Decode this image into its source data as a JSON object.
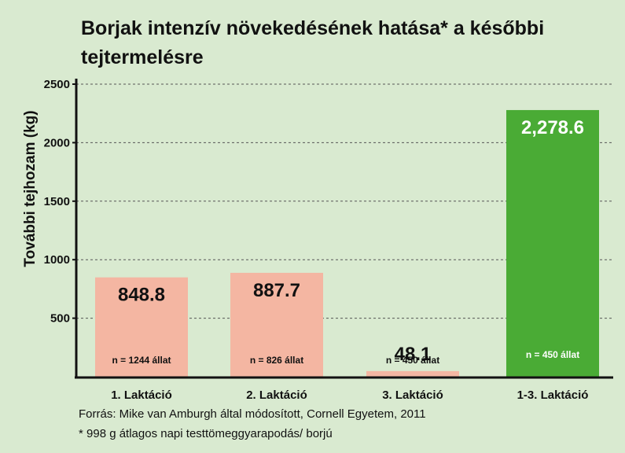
{
  "chart_data": {
    "type": "bar",
    "title": "Borjak intenzív növekedésének hatása* a későbbi tejtermelésre",
    "ylabel": "További tejhozam (kg)",
    "xlabel": "",
    "ylim": [
      0,
      2500
    ],
    "yticks": [
      500,
      1000,
      1500,
      2000,
      2500
    ],
    "grid": true,
    "categories": [
      "1. Laktáció",
      "2. Laktáció",
      "3. Laktáció",
      "1-3. Laktáció"
    ],
    "values": [
      848.8,
      887.7,
      48.1,
      2278.6
    ],
    "value_labels": [
      "848.8",
      "887.7",
      "48.1",
      "2,278.6"
    ],
    "n_labels": [
      "n = 1244 állat",
      "n = 826 állat",
      "n = 450 állat",
      "n = 450 állat"
    ],
    "colors": [
      "#f4b6a2",
      "#f4b6a2",
      "#f4b6a2",
      "#4aab35"
    ]
  },
  "footnotes": {
    "source": "Forrás: Mike van Amburgh által módosított, Cornell Egyetem, 2011",
    "asterisk": "* 998 g átlagos napi testtömeggyarapodás/ borjú"
  }
}
